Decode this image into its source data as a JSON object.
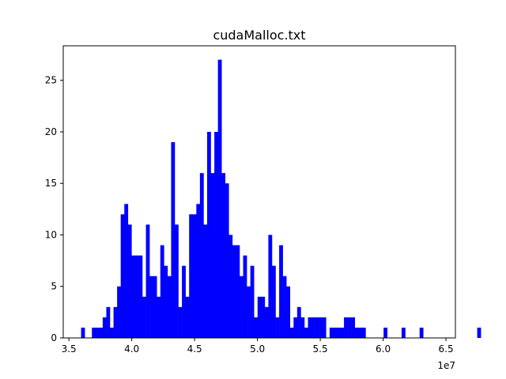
{
  "chart_data": {
    "type": "bar",
    "title": "cudaMalloc.txt",
    "xlabel": "",
    "ylabel": "",
    "xlim": [
      3.455,
      6.575
    ],
    "ylim": [
      0,
      28.35
    ],
    "x_offset_label": "1e7",
    "x_ticks": [
      3.5,
      4.0,
      4.5,
      5.0,
      5.5,
      6.0,
      6.5
    ],
    "x_tick_labels": [
      "3.5",
      "4.0",
      "4.5",
      "5.0",
      "5.5",
      "6.0",
      "6.5"
    ],
    "y_ticks": [
      0,
      5,
      10,
      15,
      20,
      25
    ],
    "y_tick_labels": [
      "0",
      "5",
      "10",
      "15",
      "20",
      "25"
    ],
    "bar_color": "#0000ff",
    "bin_start": 3.597,
    "bin_width": 0.02865,
    "values": [
      1,
      0,
      0,
      1,
      1,
      1,
      2,
      3,
      1,
      3,
      5,
      12,
      13,
      11,
      8,
      8,
      8,
      4,
      11,
      6,
      6,
      4,
      9,
      7,
      6,
      19,
      11,
      3,
      7,
      4,
      12,
      12,
      13,
      16,
      11,
      20,
      16,
      20,
      27,
      16,
      15,
      10,
      9,
      9,
      6,
      8,
      5,
      7,
      2,
      4,
      4,
      3,
      10,
      7,
      2,
      9,
      6,
      5,
      1,
      2,
      3,
      2,
      1,
      2,
      2,
      2,
      2,
      2,
      0,
      1,
      1,
      1,
      1,
      2,
      2,
      2,
      1,
      1,
      1,
      0,
      0,
      0,
      0,
      0,
      1,
      0,
      0,
      0,
      0,
      1,
      0,
      0,
      0,
      0,
      1,
      0,
      0,
      0,
      0,
      0,
      0,
      0,
      0,
      0,
      0,
      0,
      0,
      0,
      0,
      0,
      1,
      0,
      0,
      0,
      0,
      0,
      0,
      0,
      0,
      0,
      0,
      0,
      0,
      0,
      0,
      0,
      0,
      0,
      0,
      1
    ]
  }
}
